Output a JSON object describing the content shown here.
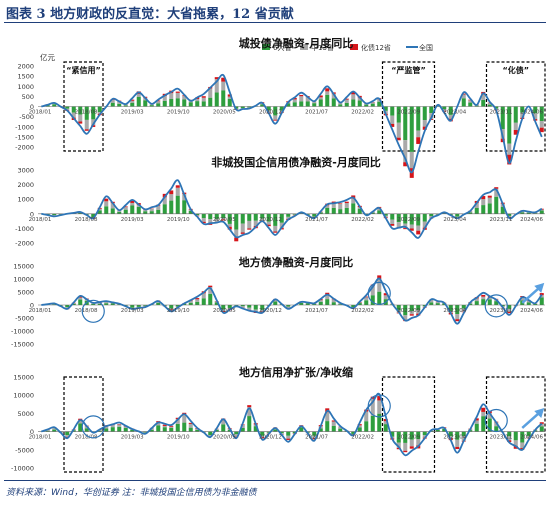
{
  "figure": {
    "title": "图表 3   地方财政的反直觉：大省拖累，12 省贡献",
    "source": "资料来源：Wind，华创证券   注：非城投国企信用债为非金融债"
  },
  "legend": [
    {
      "label": "6大省",
      "color": "#2e9e3e",
      "kind": "bar"
    },
    {
      "label": "中13省",
      "color": "#a9a9a9",
      "kind": "bar"
    },
    {
      "label": "化债12省",
      "color": "#d6151a",
      "kind": "bar"
    },
    {
      "label": "全国",
      "color": "#2e75b6",
      "kind": "line"
    }
  ],
  "colors": {
    "big6": "#2e9e3e",
    "mid13": "#a9a9a9",
    "debt12": "#d6151a",
    "nation": "#2e75b6",
    "box": "#000000",
    "circle": "#2e75b6"
  },
  "annotations": [
    "“紧信用”",
    "“严监管”",
    "“化债”"
  ],
  "chart_data": [
    {
      "type": "bar",
      "title": "城投债净融资-月度同比",
      "unit_label": "亿元",
      "ylim": [
        -2000,
        2000
      ],
      "yticks": [
        2000,
        1500,
        1000,
        500,
        0,
        -500,
        -1000,
        -1500,
        -2000
      ],
      "xtick_labels": [
        "2018/01",
        "2018/08",
        "2019/03",
        "2019/10",
        "2020/05",
        "2020/12",
        "2021/07",
        "2022/02",
        "2022/09",
        "2023/04",
        "2023/11",
        "2024/06"
      ],
      "months": 78,
      "knots": [
        [
          0,
          0
        ],
        [
          2,
          180
        ],
        [
          4,
          -200
        ],
        [
          7,
          -1350
        ],
        [
          9,
          -400
        ],
        [
          11,
          380
        ],
        [
          13,
          120
        ],
        [
          15,
          700
        ],
        [
          17,
          130
        ],
        [
          19,
          550
        ],
        [
          21,
          880
        ],
        [
          23,
          280
        ],
        [
          25,
          620
        ],
        [
          28,
          1550
        ],
        [
          30,
          -150
        ],
        [
          32,
          -100
        ],
        [
          34,
          180
        ],
        [
          36,
          -850
        ],
        [
          38,
          220
        ],
        [
          40,
          680
        ],
        [
          42,
          260
        ],
        [
          44,
          1000
        ],
        [
          46,
          200
        ],
        [
          48,
          740
        ],
        [
          50,
          150
        ],
        [
          52,
          380
        ],
        [
          55,
          -1900
        ],
        [
          57,
          -3250
        ],
        [
          59,
          -1200
        ],
        [
          61,
          80
        ],
        [
          63,
          -700
        ],
        [
          65,
          700
        ],
        [
          67,
          80
        ],
        [
          68,
          650
        ],
        [
          70,
          -200
        ],
        [
          72,
          -2800
        ],
        [
          74,
          -600
        ],
        [
          75,
          0
        ],
        [
          77,
          -1500
        ]
      ],
      "annotations": [
        {
          "label": "“紧信用”",
          "start": 4,
          "end": 10
        },
        {
          "label": "“严监管”",
          "start": 53,
          "end": 61
        },
        {
          "label": "“化债”",
          "start": 69,
          "end": 78
        }
      ]
    },
    {
      "type": "bar",
      "title": "非城投国企信用债净融资-月度同比",
      "ylim": [
        -2000,
        3000
      ],
      "yticks": [
        3000,
        2000,
        1000,
        0,
        -1000,
        -2000
      ],
      "xtick_labels": [
        "2018/01",
        "2018/08",
        "2019/03",
        "2019/10",
        "2020/05",
        "2020/12",
        "2021/07",
        "2022/02",
        "2022/09",
        "2023/04",
        "2023/11",
        "2024/06"
      ],
      "months": 78,
      "knots": [
        [
          0,
          0
        ],
        [
          2,
          -180
        ],
        [
          4,
          0
        ],
        [
          6,
          120
        ],
        [
          8,
          -300
        ],
        [
          10,
          1200
        ],
        [
          12,
          250
        ],
        [
          14,
          950
        ],
        [
          16,
          300
        ],
        [
          18,
          600
        ],
        [
          21,
          2300
        ],
        [
          23,
          300
        ],
        [
          25,
          -700
        ],
        [
          28,
          -550
        ],
        [
          30,
          -1600
        ],
        [
          32,
          -1300
        ],
        [
          34,
          -500
        ],
        [
          36,
          -1450
        ],
        [
          38,
          -400
        ],
        [
          40,
          100
        ],
        [
          42,
          -300
        ],
        [
          44,
          650
        ],
        [
          46,
          800
        ],
        [
          48,
          1100
        ],
        [
          50,
          -100
        ],
        [
          52,
          400
        ],
        [
          54,
          -1000
        ],
        [
          56,
          -900
        ],
        [
          58,
          -1650
        ],
        [
          60,
          -300
        ],
        [
          62,
          100
        ],
        [
          64,
          -300
        ],
        [
          66,
          200
        ],
        [
          68,
          1300
        ],
        [
          70,
          1650
        ],
        [
          72,
          -300
        ],
        [
          74,
          200
        ],
        [
          76,
          100
        ],
        [
          77,
          350
        ]
      ],
      "annotations": []
    },
    {
      "type": "bar",
      "title": "地方债净融资-月度同比",
      "ylim": [
        -15000,
        15000
      ],
      "yticks": [
        15000,
        10000,
        5000,
        0,
        -5000,
        -10000,
        -15000
      ],
      "xtick_labels": [
        "2018/01",
        "2018/08",
        "2019/03",
        "2019/10",
        "2020/05",
        "2020/12",
        "2021/07",
        "2022/02",
        "2022/09",
        "2023/04",
        "2023/11",
        "2024/06"
      ],
      "months": 78,
      "knots": [
        [
          0,
          0
        ],
        [
          2,
          600
        ],
        [
          4,
          -1500
        ],
        [
          6,
          3500
        ],
        [
          8,
          800
        ],
        [
          10,
          1500
        ],
        [
          12,
          500
        ],
        [
          14,
          -1500
        ],
        [
          16,
          -800
        ],
        [
          18,
          1500
        ],
        [
          20,
          -2500
        ],
        [
          22,
          600
        ],
        [
          24,
          3200
        ],
        [
          26,
          6500
        ],
        [
          28,
          -3000
        ],
        [
          30,
          -500
        ],
        [
          32,
          -2200
        ],
        [
          34,
          -3000
        ],
        [
          36,
          2200
        ],
        [
          38,
          -1500
        ],
        [
          40,
          1200
        ],
        [
          42,
          700
        ],
        [
          44,
          4000
        ],
        [
          46,
          800
        ],
        [
          48,
          -1200
        ],
        [
          50,
          3800
        ],
        [
          52,
          10200
        ],
        [
          54,
          500
        ],
        [
          56,
          -6000
        ],
        [
          58,
          -4000
        ],
        [
          60,
          2200
        ],
        [
          62,
          800
        ],
        [
          64,
          -7200
        ],
        [
          66,
          1000
        ],
        [
          68,
          4700
        ],
        [
          70,
          2000
        ],
        [
          72,
          -3800
        ],
        [
          74,
          3000
        ],
        [
          76,
          700
        ],
        [
          77,
          4000
        ]
      ],
      "annotations": []
    },
    {
      "type": "bar",
      "title": "地方信用净扩张/净收缩",
      "ylim": [
        -10000,
        15000
      ],
      "yticks": [
        15000,
        10000,
        5000,
        0,
        -5000,
        -10000
      ],
      "xtick_labels": [
        "2018/01",
        "2018/08",
        "2019/03",
        "2019/10",
        "2020/05",
        "2020/12",
        "2021/07",
        "2022/02",
        "2022/09",
        "2023/04",
        "2023/11",
        "2024/06"
      ],
      "months": 78,
      "knots": [
        [
          0,
          0
        ],
        [
          2,
          1200
        ],
        [
          4,
          -1800
        ],
        [
          6,
          3200
        ],
        [
          8,
          -300
        ],
        [
          10,
          1500
        ],
        [
          12,
          2500
        ],
        [
          14,
          700
        ],
        [
          16,
          -600
        ],
        [
          18,
          2500
        ],
        [
          20,
          1800
        ],
        [
          22,
          4800
        ],
        [
          24,
          1000
        ],
        [
          26,
          -1500
        ],
        [
          28,
          3400
        ],
        [
          30,
          -1800
        ],
        [
          32,
          6400
        ],
        [
          34,
          -2200
        ],
        [
          36,
          1000
        ],
        [
          38,
          -2800
        ],
        [
          40,
          1500
        ],
        [
          42,
          -2500
        ],
        [
          44,
          5700
        ],
        [
          46,
          1500
        ],
        [
          48,
          -1000
        ],
        [
          50,
          6000
        ],
        [
          52,
          10300
        ],
        [
          54,
          -2000
        ],
        [
          56,
          -6500
        ],
        [
          58,
          -4000
        ],
        [
          60,
          400
        ],
        [
          62,
          1000
        ],
        [
          64,
          -5800
        ],
        [
          66,
          700
        ],
        [
          68,
          7500
        ],
        [
          70,
          2500
        ],
        [
          72,
          -3000
        ],
        [
          74,
          -5000
        ],
        [
          76,
          500
        ],
        [
          77,
          2200
        ]
      ],
      "annotations": [
        {
          "label": "",
          "start": 4,
          "end": 10
        },
        {
          "label": "",
          "start": 53,
          "end": 61
        },
        {
          "label": "",
          "start": 69,
          "end": 78
        }
      ]
    }
  ]
}
